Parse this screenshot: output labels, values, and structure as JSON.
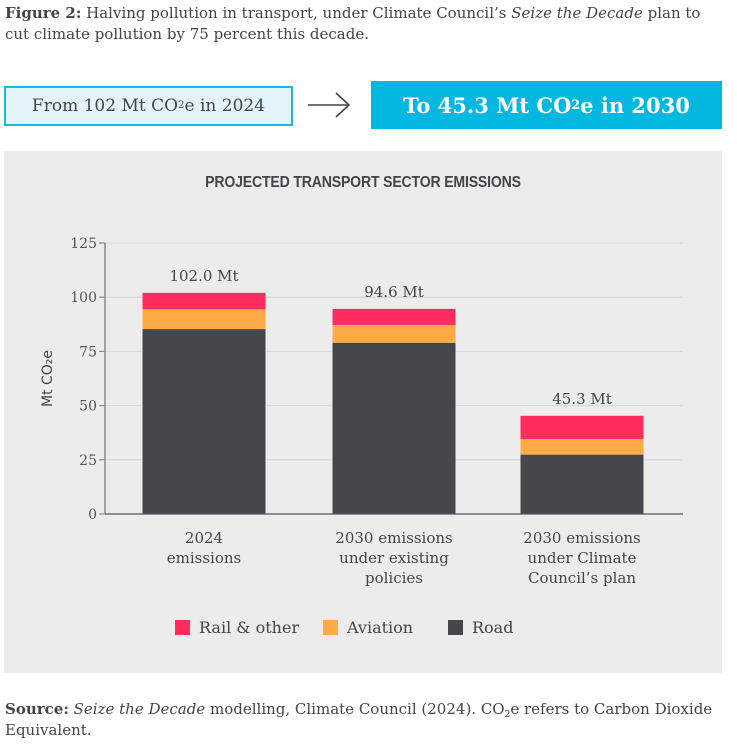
{
  "caption": {
    "label": "Figure 2:",
    "text_before": " Halving pollution in transport, under Climate Council’s ",
    "italic": "Seize the Decade",
    "text_after": " plan to cut climate pollution by 75 percent this decade."
  },
  "banner": {
    "from": {
      "prefix": "From 102 Mt CO",
      "sub": "2",
      "suffix": "e in 2024"
    },
    "arrow_icon": "right-arrow",
    "to": {
      "prefix": "To 45.3 Mt CO",
      "sub": "2",
      "suffix": "e in 2030"
    }
  },
  "colors": {
    "road": "#46474c",
    "aviation": "#ffab45",
    "rail": "#ff2d5f",
    "banner_accent": "#03b8e0",
    "panel_bg": "#ececec"
  },
  "chart_data": {
    "type": "bar",
    "stacked": true,
    "title": "PROJECTED TRANSPORT SECTOR EMISSIONS",
    "ylabel": "Mt CO₂e",
    "xlabel": "",
    "ylim": [
      0,
      125
    ],
    "yticks": [
      0,
      25,
      50,
      75,
      100,
      125
    ],
    "grid": true,
    "categories": [
      [
        "2024",
        "emissions"
      ],
      [
        "2030 emissions",
        "under existing",
        "policies"
      ],
      [
        "2030 emissions",
        "under Climate",
        "Council’s plan"
      ]
    ],
    "series": [
      {
        "name": "Road",
        "key": "road",
        "values": [
          85.3,
          79.0,
          27.4
        ]
      },
      {
        "name": "Aviation",
        "key": "aviation",
        "values": [
          9.1,
          8.2,
          7.2
        ]
      },
      {
        "name": "Rail & other",
        "key": "rail",
        "values": [
          7.6,
          7.4,
          10.7
        ]
      }
    ],
    "totals": [
      102.0,
      94.6,
      45.3
    ],
    "data_labels": [
      "102.0 Mt",
      "94.6 Mt",
      "45.3 Mt"
    ],
    "legend": {
      "placement": "bottom",
      "entries": [
        {
          "label": "Rail & other",
          "key": "rail"
        },
        {
          "label": "Aviation",
          "key": "aviation"
        },
        {
          "label": "Road",
          "key": "road"
        }
      ]
    }
  },
  "source": {
    "label": "Source:",
    "italic": "Seize the Decade",
    "text_before": " modelling, Climate Council (2024). CO",
    "sub": "2",
    "text_after": "e refers to Carbon Dioxide Equivalent."
  }
}
